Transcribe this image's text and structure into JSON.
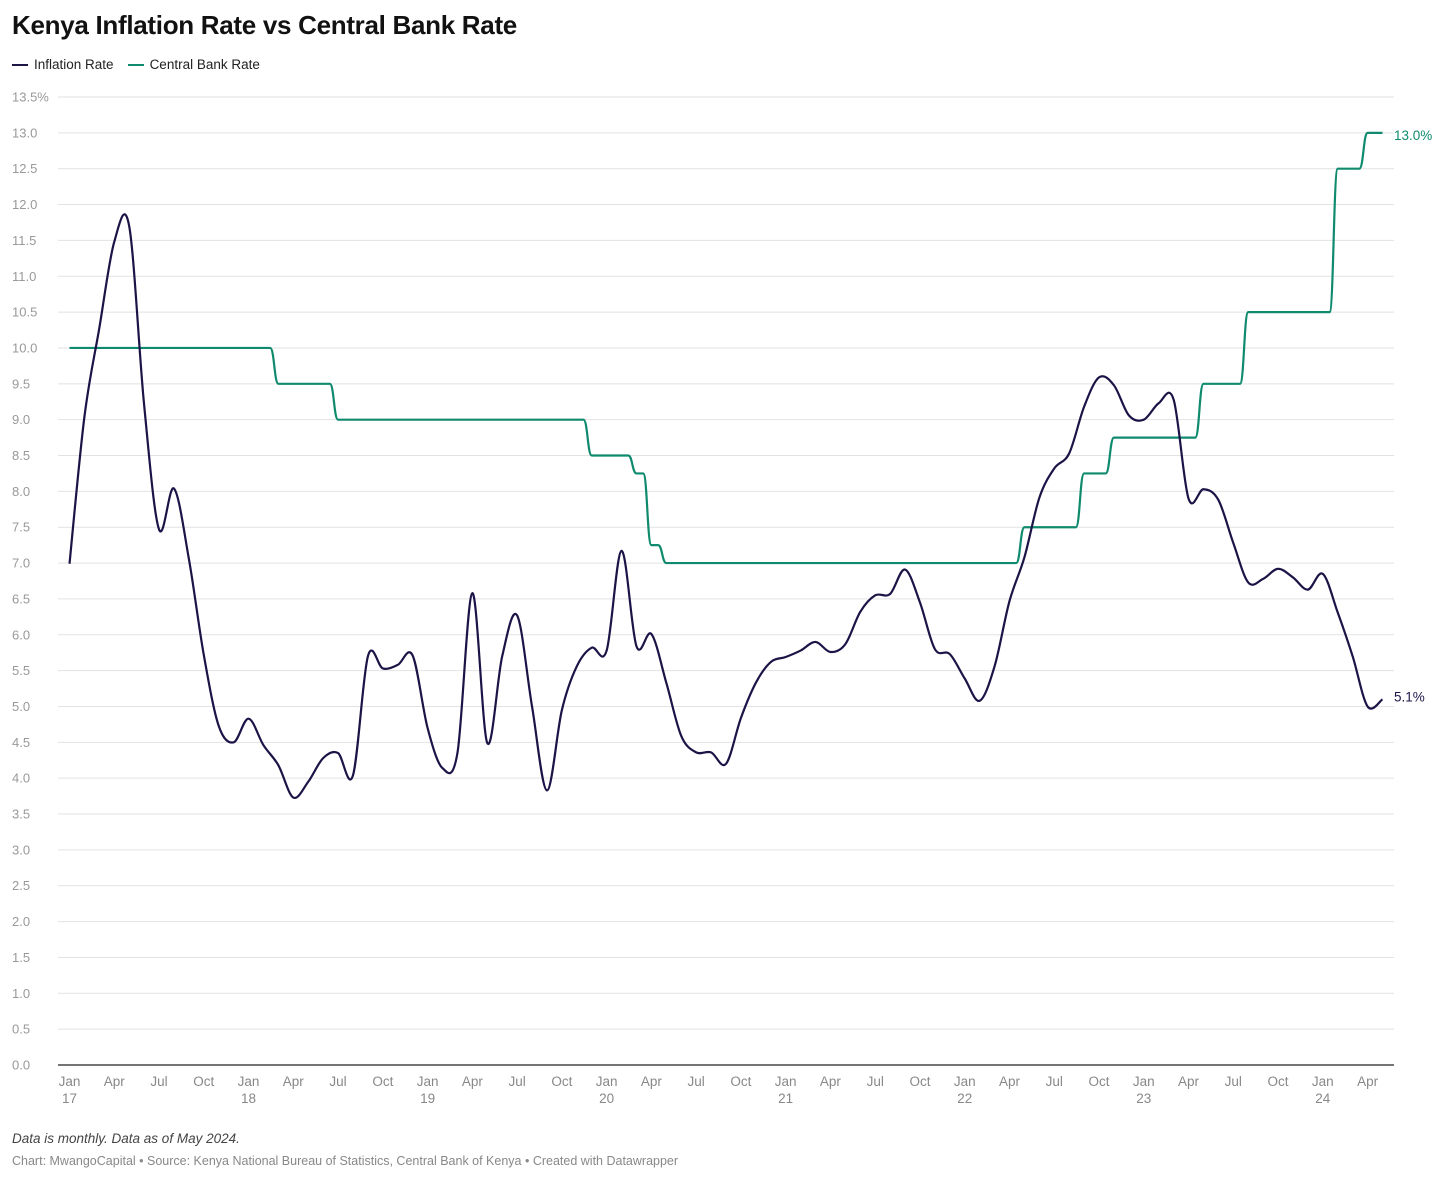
{
  "chart_data": {
    "type": "line",
    "title": "Kenya Inflation Rate vs Central Bank Rate",
    "x": [
      "2017-01",
      "2017-02",
      "2017-03",
      "2017-04",
      "2017-05",
      "2017-06",
      "2017-07",
      "2017-08",
      "2017-09",
      "2017-10",
      "2017-11",
      "2017-12",
      "2018-01",
      "2018-02",
      "2018-03",
      "2018-04",
      "2018-05",
      "2018-06",
      "2018-07",
      "2018-08",
      "2018-09",
      "2018-10",
      "2018-11",
      "2018-12",
      "2019-01",
      "2019-02",
      "2019-03",
      "2019-04",
      "2019-05",
      "2019-06",
      "2019-07",
      "2019-08",
      "2019-09",
      "2019-10",
      "2019-11",
      "2019-12",
      "2020-01",
      "2020-02",
      "2020-03",
      "2020-04",
      "2020-05",
      "2020-06",
      "2020-07",
      "2020-08",
      "2020-09",
      "2020-10",
      "2020-11",
      "2020-12",
      "2021-01",
      "2021-02",
      "2021-03",
      "2021-04",
      "2021-05",
      "2021-06",
      "2021-07",
      "2021-08",
      "2021-09",
      "2021-10",
      "2021-11",
      "2021-12",
      "2022-01",
      "2022-02",
      "2022-03",
      "2022-04",
      "2022-05",
      "2022-06",
      "2022-07",
      "2022-08",
      "2022-09",
      "2022-10",
      "2022-11",
      "2022-12",
      "2023-01",
      "2023-02",
      "2023-03",
      "2023-04",
      "2023-05",
      "2023-06",
      "2023-07",
      "2023-08",
      "2023-09",
      "2023-10",
      "2023-11",
      "2023-12",
      "2024-01",
      "2024-02",
      "2024-03",
      "2024-04",
      "2024-05"
    ],
    "series": [
      {
        "name": "Inflation Rate",
        "color": "#1b1446",
        "values": [
          6.99,
          9.04,
          10.28,
          11.48,
          11.7,
          9.21,
          7.47,
          8.04,
          7.06,
          5.72,
          4.73,
          4.5,
          4.83,
          4.46,
          4.18,
          3.73,
          3.95,
          4.28,
          4.35,
          4.04,
          5.7,
          5.53,
          5.58,
          5.71,
          4.7,
          4.14,
          4.35,
          6.58,
          4.49,
          5.7,
          6.27,
          5.0,
          3.83,
          4.95,
          5.56,
          5.82,
          5.78,
          7.17,
          5.84,
          6.01,
          5.33,
          4.59,
          4.36,
          4.36,
          4.2,
          4.84,
          5.33,
          5.62,
          5.69,
          5.78,
          5.9,
          5.76,
          5.87,
          6.32,
          6.55,
          6.57,
          6.91,
          6.45,
          5.8,
          5.73,
          5.39,
          5.08,
          5.56,
          6.47,
          7.08,
          7.91,
          8.32,
          8.53,
          9.18,
          9.59,
          9.48,
          9.06,
          9.0,
          9.23,
          9.28,
          7.9,
          8.03,
          7.88,
          7.28,
          6.73,
          6.78,
          6.92,
          6.8,
          6.63,
          6.85,
          6.31,
          5.7,
          5.0,
          5.1
        ]
      },
      {
        "name": "Central Bank Rate",
        "color": "#0f8a6e",
        "values": [
          10.0,
          10.0,
          10.0,
          10.0,
          10.0,
          10.0,
          10.0,
          10.0,
          10.0,
          10.0,
          10.0,
          10.0,
          10.0,
          10.0,
          9.5,
          9.5,
          9.5,
          9.5,
          9.0,
          9.0,
          9.0,
          9.0,
          9.0,
          9.0,
          9.0,
          9.0,
          9.0,
          9.0,
          9.0,
          9.0,
          9.0,
          9.0,
          9.0,
          9.0,
          9.0,
          8.5,
          8.5,
          8.5,
          8.25,
          7.25,
          7.0,
          7.0,
          7.0,
          7.0,
          7.0,
          7.0,
          7.0,
          7.0,
          7.0,
          7.0,
          7.0,
          7.0,
          7.0,
          7.0,
          7.0,
          7.0,
          7.0,
          7.0,
          7.0,
          7.0,
          7.0,
          7.0,
          7.0,
          7.0,
          7.5,
          7.5,
          7.5,
          7.5,
          8.25,
          8.25,
          8.75,
          8.75,
          8.75,
          8.75,
          8.75,
          8.75,
          9.5,
          9.5,
          9.5,
          10.5,
          10.5,
          10.5,
          10.5,
          10.5,
          10.5,
          12.5,
          12.5,
          13.0,
          13.0
        ]
      }
    ],
    "ylim": [
      0,
      13.5
    ],
    "yticks": [
      "0.0",
      "0.5",
      "1.0",
      "1.5",
      "2.0",
      "2.5",
      "3.0",
      "3.5",
      "4.0",
      "4.5",
      "5.0",
      "5.5",
      "6.0",
      "6.5",
      "7.0",
      "7.5",
      "8.0",
      "8.5",
      "9.0",
      "9.5",
      "10.0",
      "10.5",
      "11.0",
      "11.5",
      "12.0",
      "12.5",
      "13.0",
      "13.5%"
    ],
    "xticks": [
      {
        "month": "Jan",
        "year": "17"
      },
      {
        "month": "Apr",
        "year": ""
      },
      {
        "month": "Jul",
        "year": ""
      },
      {
        "month": "Oct",
        "year": ""
      },
      {
        "month": "Jan",
        "year": "18"
      },
      {
        "month": "Apr",
        "year": ""
      },
      {
        "month": "Jul",
        "year": ""
      },
      {
        "month": "Oct",
        "year": ""
      },
      {
        "month": "Jan",
        "year": "19"
      },
      {
        "month": "Apr",
        "year": ""
      },
      {
        "month": "Jul",
        "year": ""
      },
      {
        "month": "Oct",
        "year": ""
      },
      {
        "month": "Jan",
        "year": "20"
      },
      {
        "month": "Apr",
        "year": ""
      },
      {
        "month": "Jul",
        "year": ""
      },
      {
        "month": "Oct",
        "year": ""
      },
      {
        "month": "Jan",
        "year": "21"
      },
      {
        "month": "Apr",
        "year": ""
      },
      {
        "month": "Jul",
        "year": ""
      },
      {
        "month": "Oct",
        "year": ""
      },
      {
        "month": "Jan",
        "year": "22"
      },
      {
        "month": "Apr",
        "year": ""
      },
      {
        "month": "Jul",
        "year": ""
      },
      {
        "month": "Oct",
        "year": ""
      },
      {
        "month": "Jan",
        "year": "23"
      },
      {
        "month": "Apr",
        "year": ""
      },
      {
        "month": "Jul",
        "year": ""
      },
      {
        "month": "Oct",
        "year": ""
      },
      {
        "month": "Jan",
        "year": "24"
      },
      {
        "month": "Apr",
        "year": ""
      }
    ],
    "end_labels": {
      "inflation": "5.1%",
      "cbr": "13.0%"
    },
    "grid": true,
    "legend_position": "top-left"
  },
  "legend": {
    "inflation": "Inflation Rate",
    "cbr": "Central Bank Rate"
  },
  "footer": {
    "note": "Data is monthly. Data as of May 2024.",
    "credit": "Chart: MwangoCapital • Source: Kenya National Bureau of Statistics, Central Bank of Kenya • Created with Datawrapper"
  }
}
